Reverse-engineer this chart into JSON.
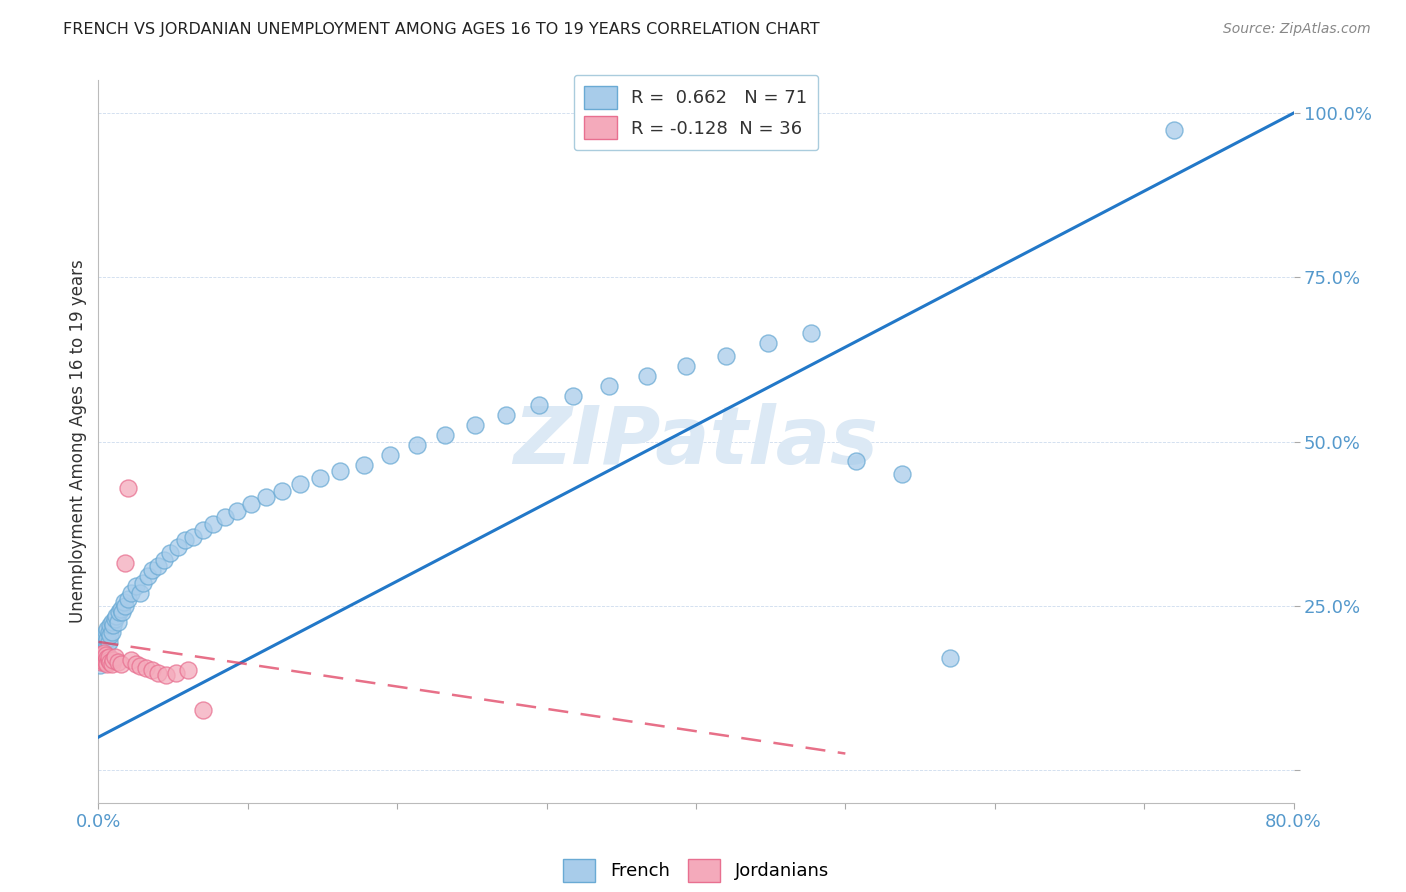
{
  "title": "FRENCH VS JORDANIAN UNEMPLOYMENT AMONG AGES 16 TO 19 YEARS CORRELATION CHART",
  "source": "Source: ZipAtlas.com",
  "ylabel": "Unemployment Among Ages 16 to 19 years",
  "xlim": [
    0.0,
    0.8
  ],
  "ylim": [
    -0.05,
    1.05
  ],
  "xticks": [
    0.0,
    0.1,
    0.2,
    0.3,
    0.4,
    0.5,
    0.6,
    0.7,
    0.8
  ],
  "xticklabels": [
    "0.0%",
    "",
    "",
    "",
    "",
    "",
    "",
    "",
    "80.0%"
  ],
  "ytick_positions": [
    0.0,
    0.25,
    0.5,
    0.75,
    1.0
  ],
  "ytick_labels": [
    "",
    "25.0%",
    "50.0%",
    "75.0%",
    "100.0%"
  ],
  "french_R": 0.662,
  "french_N": 71,
  "jordanian_R": -0.128,
  "jordanian_N": 36,
  "french_color": "#A8CCEA",
  "french_edge_color": "#6AAAD4",
  "jordanian_color": "#F4AABB",
  "jordanian_edge_color": "#E87090",
  "french_line_color": "#2278C8",
  "jordanian_line_color": "#E04060",
  "watermark_color": "#DCE9F5",
  "background_color": "#FFFFFF",
  "french_x": [
    0.001,
    0.002,
    0.002,
    0.003,
    0.003,
    0.003,
    0.004,
    0.004,
    0.004,
    0.005,
    0.005,
    0.005,
    0.006,
    0.006,
    0.006,
    0.007,
    0.007,
    0.008,
    0.008,
    0.009,
    0.009,
    0.01,
    0.011,
    0.012,
    0.013,
    0.014,
    0.015,
    0.016,
    0.017,
    0.018,
    0.02,
    0.022,
    0.025,
    0.028,
    0.03,
    0.033,
    0.036,
    0.04,
    0.044,
    0.048,
    0.053,
    0.058,
    0.063,
    0.07,
    0.077,
    0.085,
    0.093,
    0.102,
    0.112,
    0.123,
    0.135,
    0.148,
    0.162,
    0.178,
    0.195,
    0.213,
    0.232,
    0.252,
    0.273,
    0.295,
    0.318,
    0.342,
    0.367,
    0.393,
    0.42,
    0.448,
    0.477,
    0.507,
    0.538,
    0.57,
    0.72
  ],
  "french_y": [
    0.16,
    0.18,
    0.175,
    0.185,
    0.19,
    0.17,
    0.185,
    0.175,
    0.2,
    0.18,
    0.195,
    0.21,
    0.19,
    0.2,
    0.215,
    0.195,
    0.21,
    0.205,
    0.22,
    0.21,
    0.225,
    0.22,
    0.23,
    0.235,
    0.225,
    0.24,
    0.245,
    0.24,
    0.255,
    0.25,
    0.26,
    0.27,
    0.28,
    0.27,
    0.285,
    0.295,
    0.305,
    0.31,
    0.32,
    0.33,
    0.34,
    0.35,
    0.355,
    0.365,
    0.375,
    0.385,
    0.395,
    0.405,
    0.415,
    0.425,
    0.435,
    0.445,
    0.455,
    0.465,
    0.48,
    0.495,
    0.51,
    0.525,
    0.54,
    0.555,
    0.57,
    0.585,
    0.6,
    0.615,
    0.63,
    0.65,
    0.665,
    0.47,
    0.45,
    0.17,
    0.975
  ],
  "jordanian_x": [
    0.001,
    0.001,
    0.002,
    0.002,
    0.002,
    0.003,
    0.003,
    0.003,
    0.004,
    0.004,
    0.004,
    0.005,
    0.005,
    0.005,
    0.006,
    0.006,
    0.007,
    0.007,
    0.008,
    0.009,
    0.01,
    0.011,
    0.013,
    0.015,
    0.018,
    0.02,
    0.022,
    0.025,
    0.028,
    0.032,
    0.036,
    0.04,
    0.045,
    0.052,
    0.06,
    0.07
  ],
  "jordanian_y": [
    0.175,
    0.17,
    0.168,
    0.175,
    0.165,
    0.172,
    0.168,
    0.175,
    0.165,
    0.172,
    0.178,
    0.168,
    0.175,
    0.165,
    0.17,
    0.162,
    0.168,
    0.172,
    0.165,
    0.162,
    0.168,
    0.172,
    0.165,
    0.162,
    0.315,
    0.43,
    0.168,
    0.162,
    0.158,
    0.155,
    0.152,
    0.148,
    0.145,
    0.148,
    0.152,
    0.092
  ],
  "french_line_x": [
    0.0,
    0.8
  ],
  "french_line_y": [
    0.05,
    1.0
  ],
  "jordanian_line_x": [
    0.0,
    0.5
  ],
  "jordanian_line_y": [
    0.195,
    0.025
  ]
}
